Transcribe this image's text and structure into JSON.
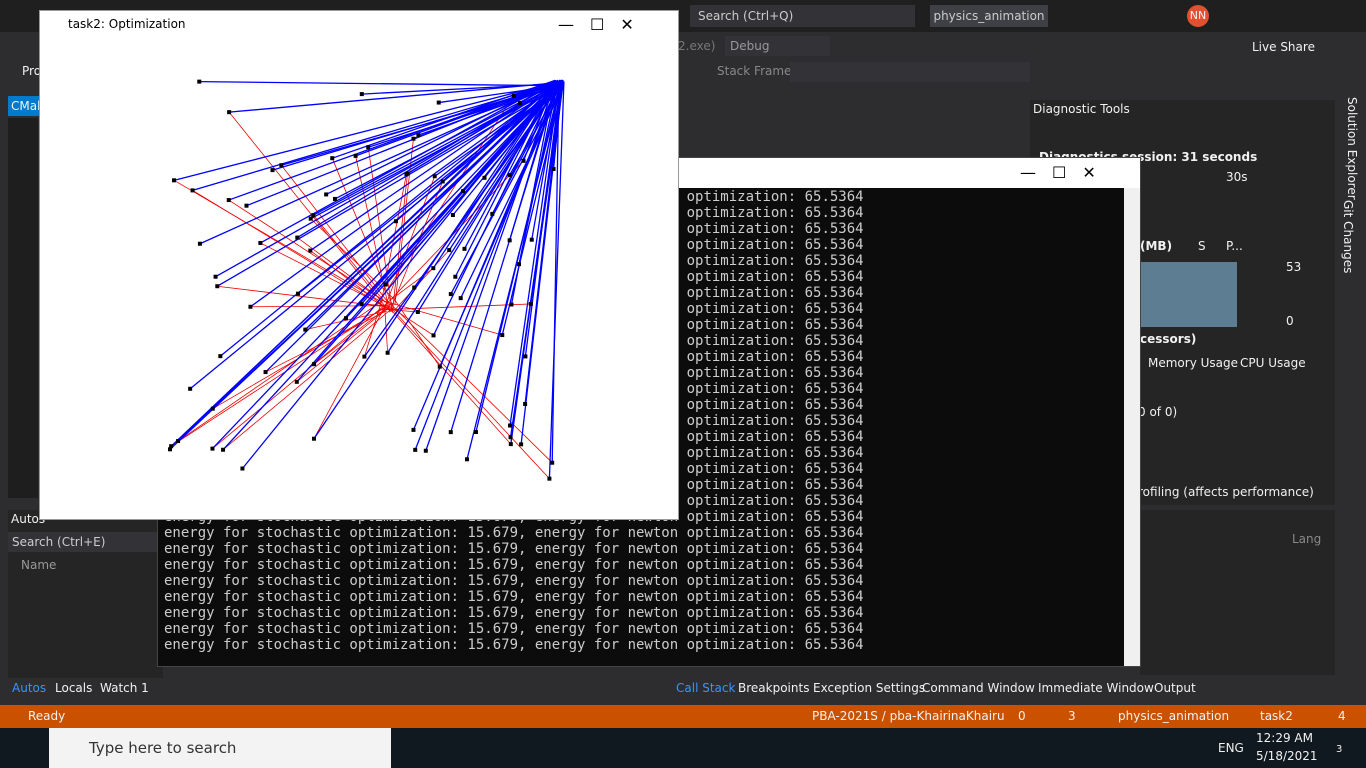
{
  "vs": {
    "search": "Search (Ctrl+Q)",
    "project": "physics_animation",
    "user": "NN",
    "config": "Debug",
    "exe": "2.exe)",
    "live_share": "Live Share",
    "stack_frame": "Stack Frame:",
    "left_tab": "CMak",
    "left_item": "Pro",
    "side_tabs": [
      "Solution Explorer",
      "Git Changes"
    ]
  },
  "optimization_window": {
    "title": "task2: Optimization"
  },
  "console": {
    "lines": [
      "energy for stochastic optimization: 15.679,  energy for newton optimization: 65.5364",
      "energy for stochastic optimization: 15.679,  energy for newton optimization: 65.5364",
      "energy for stochastic optimization: 15.679,  energy for newton optimization: 65.5364",
      "energy for stochastic optimization: 15.679,  energy for newton optimization: 65.5364",
      "energy for stochastic optimization: 15.679,  energy for newton optimization: 65.5364",
      "energy for stochastic optimization: 15.679,  energy for newton optimization: 65.5364",
      "energy for stochastic optimization: 15.679,  energy for newton optimization: 65.5364",
      "energy for stochastic optimization: 15.679,  energy for newton optimization: 65.5364",
      "energy for stochastic optimization: 15.679,  energy for newton optimization: 65.5364",
      "energy for stochastic optimization: 15.679,  energy for newton optimization: 65.5364",
      "energy for stochastic optimization: 15.679,  energy for newton optimization: 65.5364",
      "energy for stochastic optimization: 15.679,  energy for newton optimization: 65.5364",
      "energy for stochastic optimization: 15.679,  energy for newton optimization: 65.5364",
      "energy for stochastic optimization: 15.679,  energy for newton optimization: 65.5364",
      "energy for stochastic optimization: 15.679,  energy for newton optimization: 65.5364",
      "energy for stochastic optimization: 15.679,  energy for newton optimization: 65.5364",
      "energy for stochastic optimization: 15.679,  energy for newton optimization: 65.5364",
      "energy for stochastic optimization: 15.679,  energy for newton optimization: 65.5364",
      "energy for stochastic optimization: 15.679,  energy for newton optimization: 65.5364",
      "energy for stochastic optimization: 15.679,  energy for newton optimization: 65.5364",
      "energy for stochastic optimization: 15.679,  energy for newton optimization: 65.5364",
      "energy for stochastic optimization: 15.679,  energy for newton optimization: 65.5364",
      "energy for stochastic optimization: 15.679,  energy for newton optimization: 65.5364",
      "energy for stochastic optimization: 15.679,  energy for newton optimization: 65.5364",
      "energy for stochastic optimization: 15.679,  energy for newton optimization: 65.5364",
      "energy for stochastic optimization: 15.679,  energy for newton optimization: 65.5364",
      "energy for stochastic optimization: 15.679,  energy for newton optimization: 65.5364",
      "energy for stochastic optimization: 15.679,  energy for newton optimization: 65.5364",
      "energy for stochastic optimization: 15.679,  energy for newton optimization: 65.5364"
    ]
  },
  "diagnostics": {
    "title": "Diagnostic Tools",
    "session": "Diagnostics session: 31 seconds",
    "time_mark": "30s",
    "memory": "(MB)",
    "legend_s": "S",
    "legend_p": "P...",
    "max": "53",
    "min": "0",
    "cpu": "cessors)",
    "tabs": [
      "Memory Usage",
      "CPU Usage"
    ],
    "events": "0 of 0)",
    "profiling": "rofiling (affects performance)"
  },
  "autos": {
    "title": "Autos",
    "search": "Search (Ctrl+E)",
    "column": "Name",
    "tabs": [
      "Autos",
      "Locals",
      "Watch 1"
    ],
    "right_column": "Lang"
  },
  "bottom_tabs": [
    "Call Stack",
    "Breakpoints",
    "Exception Settings",
    "Command Window",
    "Immediate Window",
    "Output"
  ],
  "status": {
    "state": "Ready",
    "repo": "PBA-2021S / pba-KhairinaKhairu",
    "up": "0",
    "edits": "3",
    "project": "physics_animation",
    "branch": "task2",
    "notifications": "4"
  },
  "taskbar": {
    "search": "Type here to search",
    "lang": "ENG",
    "time": "12:29 AM",
    "date": "5/18/2021",
    "badge": "3"
  }
}
